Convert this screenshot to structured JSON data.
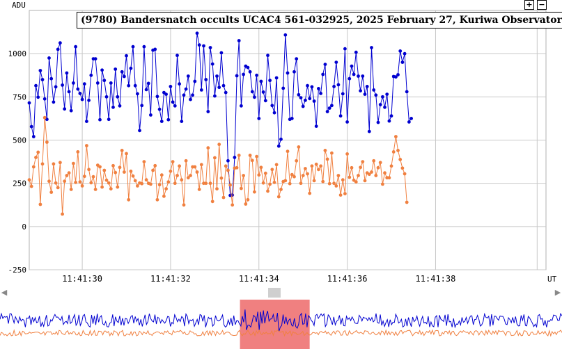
{
  "title": "(9780) Bandersnatch occults UCAC4 561-032925, 2025 February 27, Kuriwa Observatory",
  "zoom_in_label": "+",
  "zoom_out_label": "−",
  "scroll_left_label": "◀",
  "scroll_right_label": "▶",
  "colors": {
    "series1": "#0000d0",
    "series2": "#f08040",
    "grid": "#c8c8c8",
    "selection": "#f08080"
  },
  "chart_data": {
    "type": "line",
    "ylabel": "ADU",
    "xlabel": "UT",
    "ylim": [
      -250,
      1250
    ],
    "yticks": [
      1000,
      750,
      500,
      250,
      0,
      -250
    ],
    "xlim": [
      28.8,
      40.5
    ],
    "xticks": [
      {
        "value": 30,
        "label": "11:41:30"
      },
      {
        "value": 32,
        "label": "11:41:32"
      },
      {
        "value": 34,
        "label": "11:41:34"
      },
      {
        "value": 36,
        "label": "11:41:36"
      },
      {
        "value": 38,
        "label": "11:41:38"
      }
    ],
    "x_start": 28.8,
    "x_step": 0.05,
    "series": [
      {
        "values": [
          715,
          578,
          520,
          815,
          748,
          902,
          850,
          738,
          620,
          975,
          855,
          720,
          808,
          1025,
          1062,
          818,
          680,
          888,
          780,
          670,
          830,
          1040,
          795,
          770,
          735,
          825,
          608,
          730,
          875,
          970,
          970,
          830,
          618,
          905,
          845,
          750,
          620,
          830,
          690,
          910,
          750,
          698,
          895,
          868,
          988,
          815,
          915,
          1040,
          815,
          768,
          555,
          700,
          1040,
          792,
          828,
          645,
          1020,
          1025,
          752,
          678,
          608,
          775,
          765,
          618,
          810,
          720,
          698,
          990,
          825,
          608,
          760,
          795,
          870,
          735,
          760,
          840,
          1118,
          1050,
          790,
          1045,
          850,
          665,
          1035,
          940,
          755,
          870,
          805,
          1005,
          815,
          775,
          380,
          180,
          182,
          400,
          872,
          1075,
          698,
          880,
          928,
          920,
          895,
          780,
          748,
          875,
          625,
          840,
          778,
          728,
          990,
          845,
          700,
          658,
          860,
          465,
          505,
          800,
          1108,
          888,
          620,
          625,
          895,
          970,
          762,
          745,
          695,
          730,
          815,
          740,
          808,
          725,
          580,
          798,
          770,
          880,
          938,
          665,
          685,
          700,
          810,
          950,
          820,
          640,
          768,
          1028,
          605,
          855,
          928,
          880,
          1008,
          870,
          785,
          870,
          765,
          810,
          550,
          1035,
          790,
          760,
          602,
          705,
          750,
          690,
          765,
          610,
          640,
          868,
          865,
          878,
          1015,
          950,
          1000,
          780,
          605,
          625
        ],
        "name": ""
      },
      {
        "values": [
          270,
          232,
          345,
          400,
          430,
          128,
          362,
          630,
          488,
          262,
          198,
          362,
          252,
          225,
          370,
          72,
          262,
          295,
          310,
          215,
          365,
          255,
          432,
          258,
          235,
          290,
          468,
          330,
          253,
          288,
          215,
          355,
          345,
          228,
          325,
          268,
          252,
          218,
          352,
          312,
          228,
          342,
          440,
          315,
          422,
          155,
          320,
          292,
          265,
          235,
          252,
          248,
          375,
          270,
          250,
          245,
          325,
          352,
          155,
          242,
          298,
          175,
          218,
          258,
          320,
          375,
          250,
          295,
          350,
          270,
          125,
          380,
          282,
          295,
          345,
          345,
          315,
          215,
          358,
          250,
          250,
          455,
          250,
          145,
          398,
          218,
          475,
          280,
          168,
          350,
          325,
          240,
          125,
          338,
          340,
          412,
          220,
          295,
          130,
          155,
          412,
          382,
          200,
          405,
          298,
          342,
          252,
          308,
          205,
          245,
          330,
          255,
          358,
          172,
          215,
          260,
          265,
          435,
          248,
          300,
          288,
          380,
          460,
          250,
          295,
          335,
          305,
          192,
          350,
          265,
          360,
          330,
          350,
          260,
          440,
          390,
          248,
          425,
          250,
          235,
          295,
          182,
          270,
          190,
          420,
          285,
          340,
          268,
          258,
          295,
          342,
          375,
          265,
          310,
          302,
          315,
          380,
          295,
          340,
          370,
          245,
          310,
          282,
          282,
          350,
          432,
          520,
          440,
          388,
          338,
          305,
          140
        ],
        "name": ""
      }
    ],
    "overview_selection": [
      0.427,
      0.551
    ]
  }
}
